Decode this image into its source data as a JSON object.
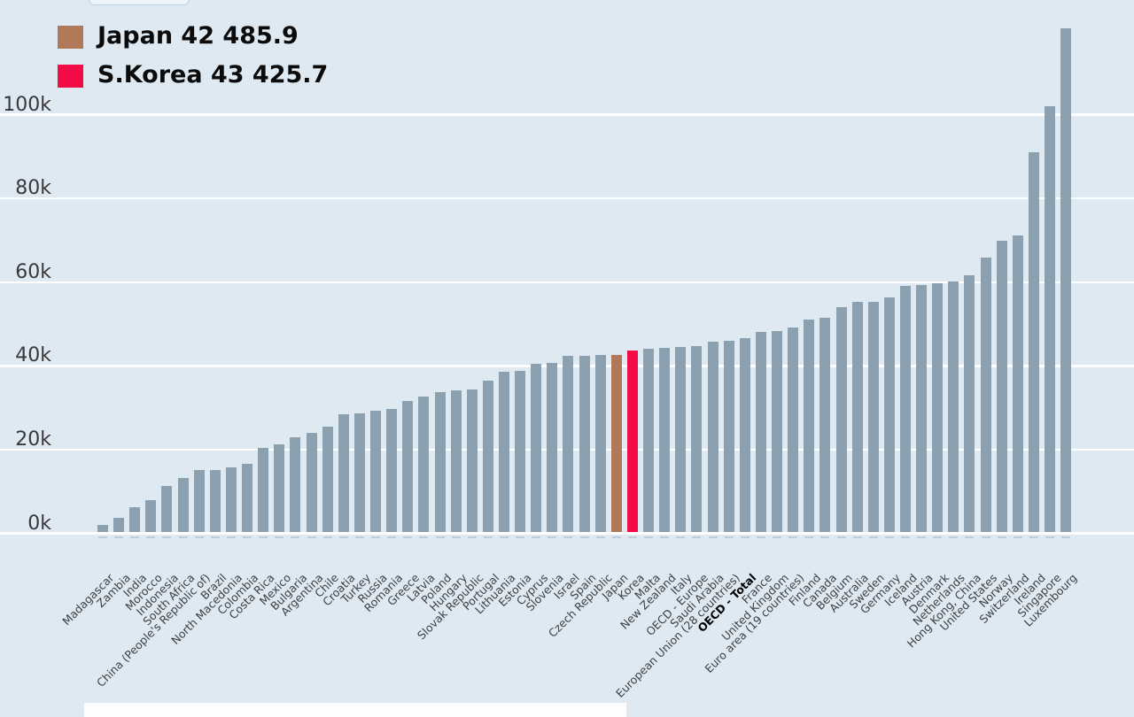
{
  "legend": {
    "items": [
      {
        "label": "Japan 42 485.9",
        "color": "#b1795a"
      },
      {
        "label": "S.Korea 43 425.7",
        "color": "#f30b45"
      }
    ]
  },
  "chart_data": {
    "type": "bar",
    "title": "",
    "xlabel": "",
    "ylabel": "",
    "grid": "horizontal-white-lines",
    "legend_position": "top-left",
    "background_color": "#dfe9f1",
    "bar_color": "#8ba1b0",
    "tick_dash_color": "#c0ccd6",
    "ylim": [
      0,
      125000
    ],
    "yticks": [
      {
        "value": 0,
        "label": "0k"
      },
      {
        "value": 20000,
        "label": "20k"
      },
      {
        "value": 40000,
        "label": "40k"
      },
      {
        "value": 60000,
        "label": "60k"
      },
      {
        "value": 80000,
        "label": "80k"
      },
      {
        "value": 100000,
        "label": "100k"
      }
    ],
    "highlights": {
      "Japan": "#b1795a",
      "Korea": "#f30b45"
    },
    "bold_categories": [
      "OECD - Total"
    ],
    "categories": [
      "Madagascar",
      "Zambia",
      "India",
      "Morocco",
      "Indonesia",
      "South Africa",
      "China (People's Republic of)",
      "Brazil",
      "North Macedonia",
      "Colombia",
      "Costa Rica",
      "Mexico",
      "Bulgaria",
      "Argentina",
      "Chile",
      "Croatia",
      "Turkey",
      "Russia",
      "Romania",
      "Greece",
      "Latvia",
      "Poland",
      "Hungary",
      "Slovak Republic",
      "Portugal",
      "Lithuania",
      "Estonia",
      "Cyprus",
      "Slovenia",
      "Israel",
      "Spain",
      "Czech Republic",
      "Japan",
      "Korea",
      "Malta",
      "New Zealand",
      "Italy",
      "OECD - Europe",
      "Saudi Arabia",
      "European Union (28 countries)",
      "OECD - Total",
      "France",
      "United Kingdom",
      "Euro area (19 countries)",
      "Finland",
      "Canada",
      "Belgium",
      "Australia",
      "Sweden",
      "Germany",
      "Iceland",
      "Austria",
      "Denmark",
      "Netherlands",
      "Hong Kong, China",
      "United States",
      "Norway",
      "Switzerland",
      "Ireland",
      "Singapore",
      "Luxembourg"
    ],
    "values": [
      1700,
      3500,
      6100,
      7800,
      11100,
      13100,
      14800,
      14900,
      15500,
      16400,
      20200,
      21000,
      22800,
      23700,
      25200,
      28300,
      28500,
      29000,
      29400,
      31500,
      32400,
      33600,
      34000,
      34100,
      36200,
      38300,
      38600,
      40200,
      40400,
      42100,
      42200,
      42400,
      42485.9,
      43425.7,
      43900,
      44100,
      44300,
      44500,
      45600,
      45800,
      46500,
      47900,
      48200,
      48900,
      50900,
      51300,
      53900,
      55000,
      55100,
      56200,
      58900,
      59100,
      59600,
      59900,
      61500,
      65600,
      69700,
      70900,
      90900,
      101900,
      120400
    ]
  }
}
